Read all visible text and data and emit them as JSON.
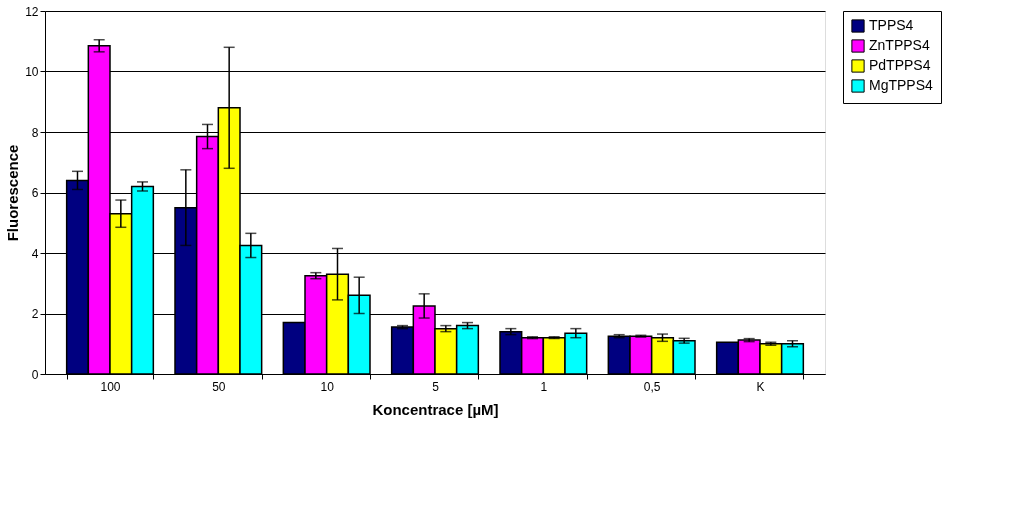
{
  "chart_data": {
    "type": "bar",
    "xlabel": "Koncentrace  [µM]",
    "ylabel": "Fluorescence",
    "categories": [
      "100",
      "50",
      "10",
      "5",
      "1",
      "0,5",
      "K"
    ],
    "series": [
      {
        "name": "TPPS4",
        "color": "#000080",
        "values": [
          6.4,
          5.5,
          1.7,
          1.55,
          1.4,
          1.25,
          1.05
        ],
        "errors": [
          0.3,
          1.25,
          null,
          0.05,
          0.1,
          0.05,
          null
        ]
      },
      {
        "name": "ZnTPPS4",
        "color": "#ff00ff",
        "values": [
          10.85,
          7.85,
          3.25,
          2.25,
          1.2,
          1.25,
          1.12
        ],
        "errors": [
          0.2,
          0.4,
          0.1,
          0.4,
          0.03,
          0.03,
          0.05
        ]
      },
      {
        "name": "PdTPPS4",
        "color": "#ffff00",
        "values": [
          5.3,
          8.8,
          3.3,
          1.5,
          1.2,
          1.2,
          1.0
        ],
        "errors": [
          0.45,
          2.0,
          0.85,
          0.1,
          0.03,
          0.12,
          0.05
        ]
      },
      {
        "name": "MgTPPS4",
        "color": "#00ffff",
        "values": [
          6.2,
          4.25,
          2.6,
          1.6,
          1.35,
          1.1,
          1.0
        ],
        "errors": [
          0.15,
          0.4,
          0.6,
          0.1,
          0.15,
          0.08,
          0.1
        ]
      }
    ],
    "ylim": [
      0,
      12
    ],
    "yticks": [
      0,
      2,
      4,
      6,
      8,
      10,
      12
    ],
    "grid": "y",
    "legend": "right"
  }
}
